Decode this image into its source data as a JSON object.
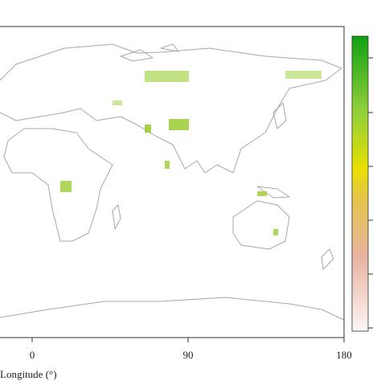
{
  "map": {
    "xlabel": "Longitude (°)",
    "xlim": [
      -180,
      180
    ],
    "xticks": [
      0,
      90,
      180
    ]
  }
}
